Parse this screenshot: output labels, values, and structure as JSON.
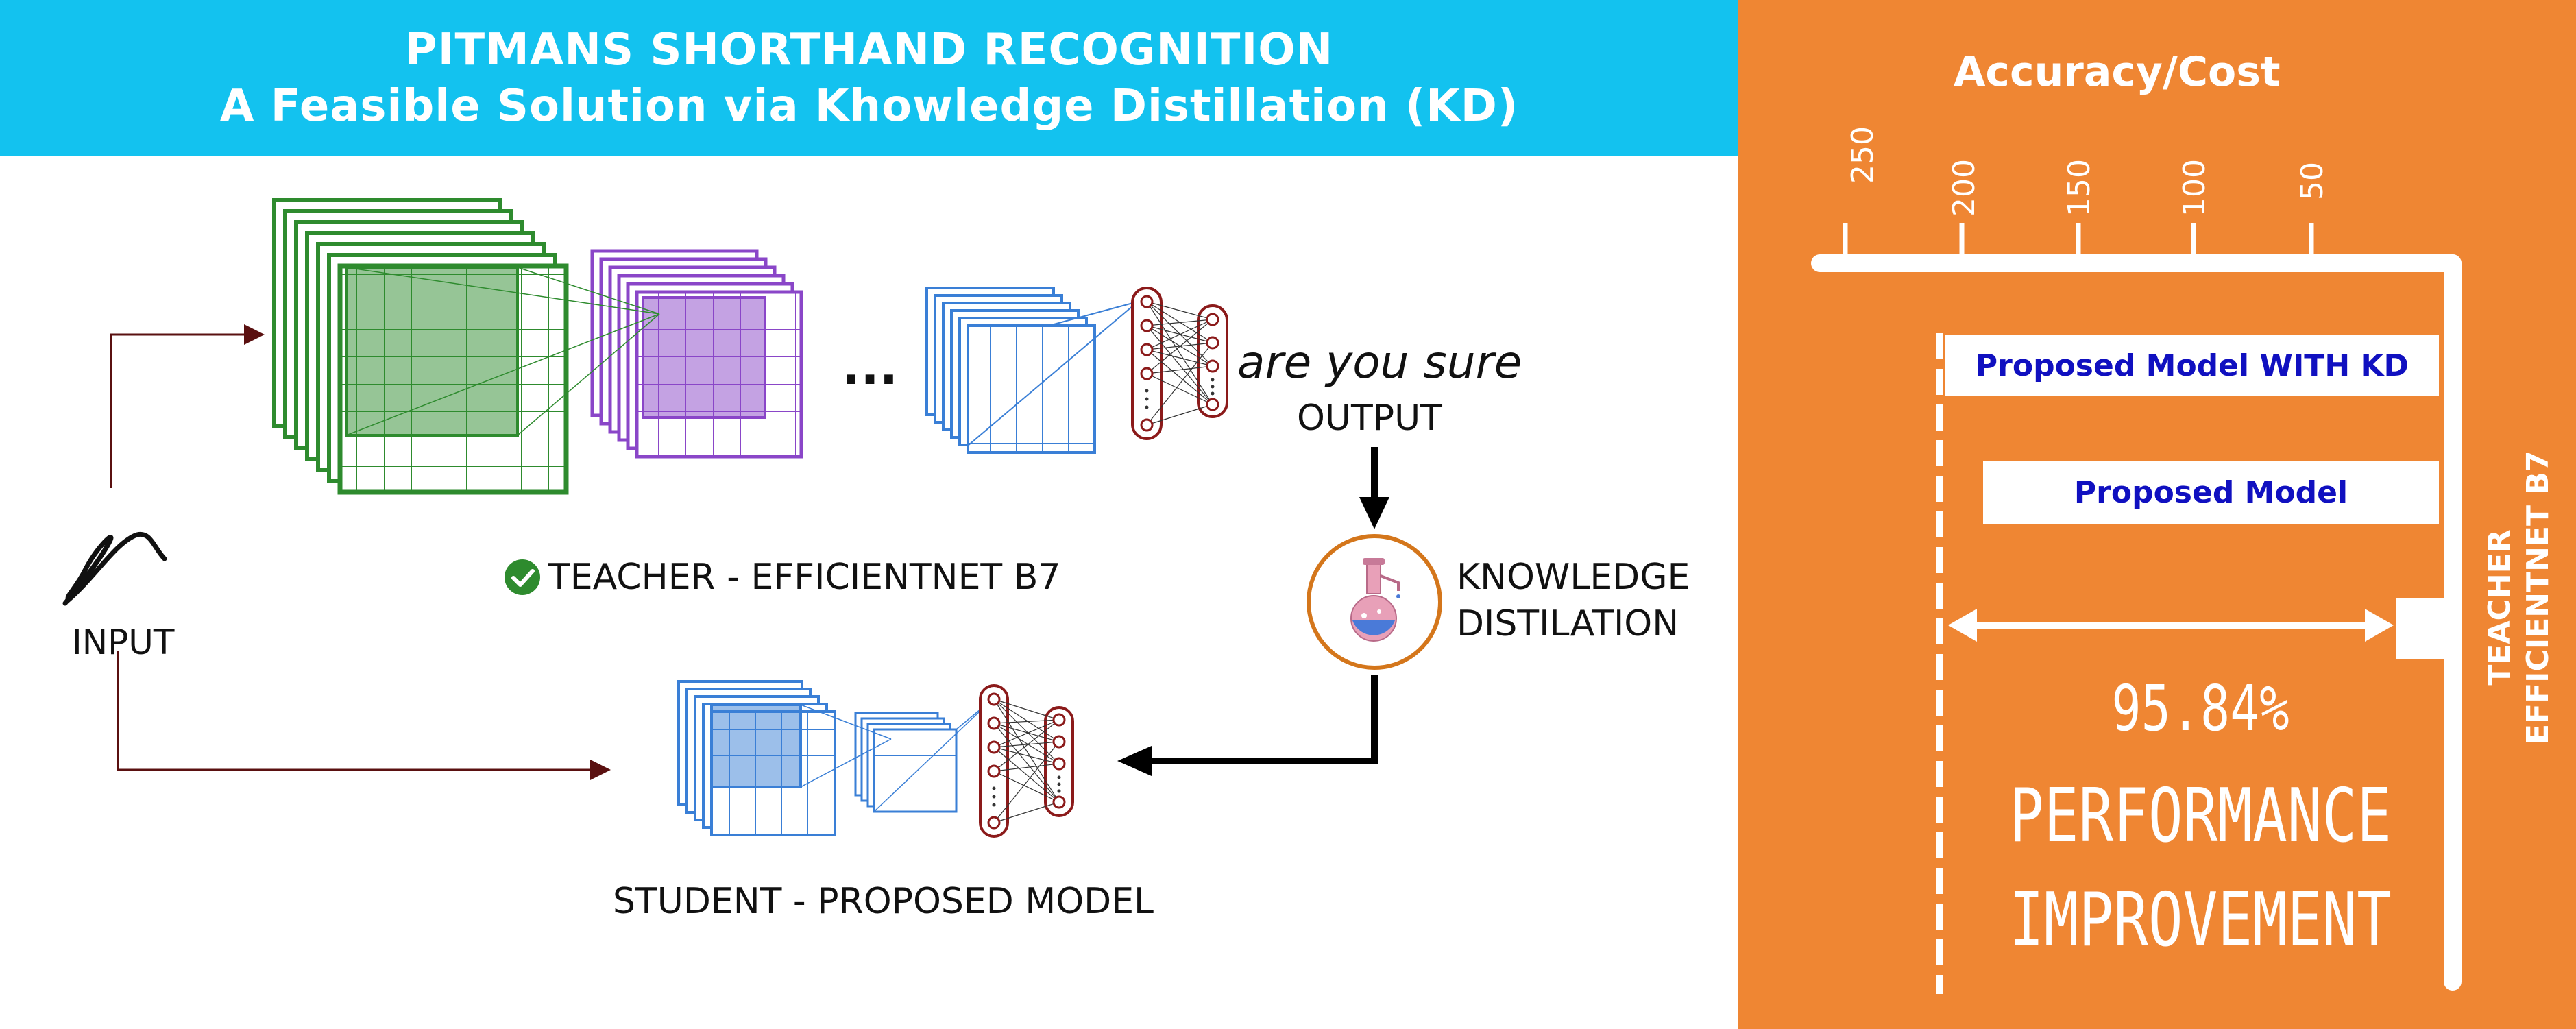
{
  "header": {
    "title_line1": "PITMANS SHORTHAND RECOGNITION",
    "title_line2": "A Feasible Solution via Khowledge Distillation (KD)"
  },
  "labels": {
    "input": "INPUT",
    "teacher": "TEACHER - EFFICIENTNET B7",
    "student": "STUDENT - PROPOSED MODEL",
    "ellipsis": "...",
    "prediction": "are you sure",
    "output": "OUTPUT",
    "knowledge": "KNOWLEDGE",
    "distilation": "DISTILATION"
  },
  "panel": {
    "title": "Accuracy/Cost",
    "ticks": [
      "250",
      "200",
      "150",
      "100",
      "50"
    ],
    "bar_kd": "Proposed Model WITH KD",
    "bar_model": "Proposed Model",
    "teacher_line1": "TEACHER",
    "teacher_line2": "EFFICIENTNET B7",
    "improvement_value": "95.84%",
    "improvement_line1": "PERFORMANCE",
    "improvement_line2": "IMPROVEMENT"
  },
  "colors": {
    "banner": "#13c2ef",
    "panel": "#ef8633",
    "teacher_cnn": "#2e8b2e",
    "teacher_cnn2": "#8a46c8",
    "student_cnn": "#3a7fd6",
    "bar_text": "#1010c0"
  },
  "icons": [
    "check-circle-icon",
    "flask-icon",
    "handwriting-stroke-icon"
  ]
}
